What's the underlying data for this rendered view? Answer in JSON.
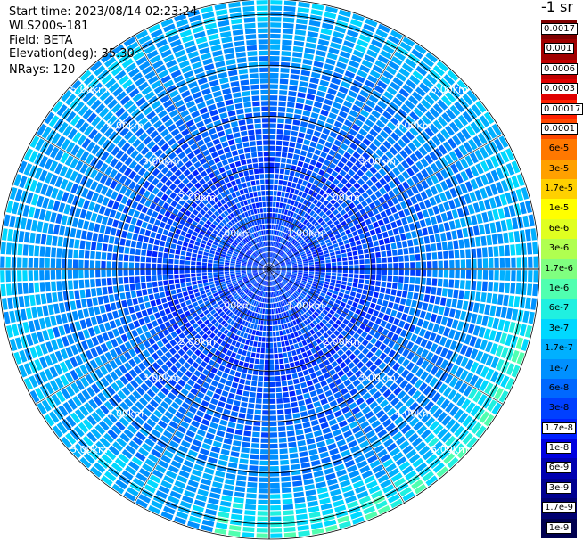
{
  "header": {
    "start_time": "Start time: 2023/08/14 02:23:24",
    "instrument": "WLS200s-181",
    "field": "Field: BETA",
    "elevation": "Elevation(deg): 35.30",
    "nrays": "NRays: 120"
  },
  "chart_data": {
    "type": "heatmap",
    "projection": "polar-ppi",
    "field": "BETA",
    "elevation_deg": 35.3,
    "n_rays": 120,
    "range_rings_km": [
      1,
      2,
      3,
      4,
      5
    ],
    "ring_label_suffix": "km",
    "max_range_km": 5.3,
    "radial_spokes_deg": [
      0,
      30,
      60,
      90,
      120,
      150,
      180,
      210,
      240,
      270,
      300,
      330
    ],
    "radial_profile": [
      {
        "range_km": 0.5,
        "beta": "3e-8"
      },
      {
        "range_km": 1.0,
        "beta": "3e-8"
      },
      {
        "range_km": 2.0,
        "beta": "3e-8"
      },
      {
        "range_km": 3.0,
        "beta": "6e-8"
      },
      {
        "range_km": 4.0,
        "beta": "1e-7"
      },
      {
        "range_km": 5.0,
        "beta": "1.7e-7"
      }
    ],
    "colorbar": {
      "title": "-1 sr",
      "levels": [
        {
          "label": "0.0017",
          "color": "#800000"
        },
        {
          "label": "0.001",
          "color": "#a00000"
        },
        {
          "label": "0.0006",
          "color": "#c00000"
        },
        {
          "label": "0.0003",
          "color": "#e00000"
        },
        {
          "label": "0.00017",
          "color": "#ff2000"
        },
        {
          "label": "0.0001",
          "color": "#ff4800"
        },
        {
          "label": "6e-5",
          "color": "#ff7800"
        },
        {
          "label": "3e-5",
          "color": "#ffa000"
        },
        {
          "label": "1.7e-5",
          "color": "#ffd000"
        },
        {
          "label": "1e-5",
          "color": "#ffff00"
        },
        {
          "label": "6e-6",
          "color": "#e0ff20"
        },
        {
          "label": "3e-6",
          "color": "#b0ff50"
        },
        {
          "label": "1.7e-6",
          "color": "#80ff80"
        },
        {
          "label": "1e-6",
          "color": "#50ffb0"
        },
        {
          "label": "6e-7",
          "color": "#20f0e0"
        },
        {
          "label": "3e-7",
          "color": "#00d8ff"
        },
        {
          "label": "1.7e-7",
          "color": "#00b0ff"
        },
        {
          "label": "1e-7",
          "color": "#0090ff"
        },
        {
          "label": "6e-8",
          "color": "#0068ff"
        },
        {
          "label": "3e-8",
          "color": "#0040ff"
        },
        {
          "label": "1.7e-8",
          "color": "#0020ff"
        },
        {
          "label": "1e-8",
          "color": "#0000e0"
        },
        {
          "label": "6e-9",
          "color": "#0000b0"
        },
        {
          "label": "3e-9",
          "color": "#000090"
        },
        {
          "label": "1.7e-9",
          "color": "#000070"
        },
        {
          "label": "1e-9",
          "color": "#000050"
        }
      ]
    }
  }
}
